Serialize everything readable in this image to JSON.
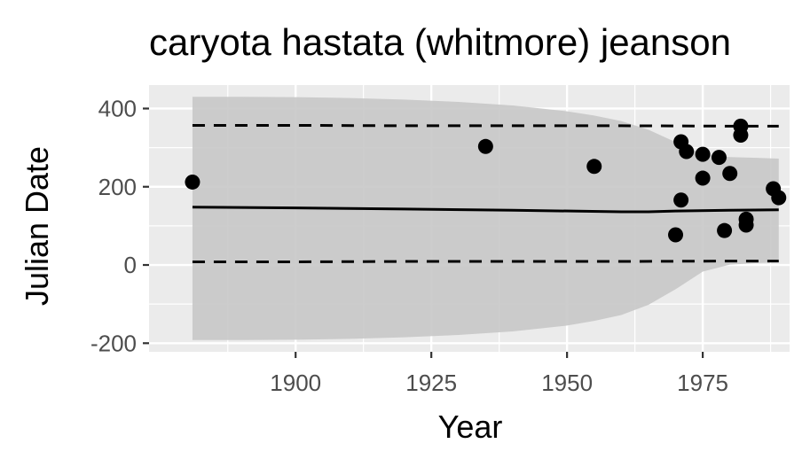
{
  "chart_data": {
    "type": "scatter",
    "title": "caryota hastata (whitmore) jeanson",
    "xlabel": "Year",
    "ylabel": "Julian Date",
    "xlim": [
      1873,
      1991
    ],
    "ylim": [
      -222,
      460
    ],
    "x_ticks": [
      1900,
      1925,
      1950,
      1975
    ],
    "y_ticks": [
      -200,
      0,
      200,
      400
    ],
    "x_tick_labels": [
      "1900",
      "1925",
      "1950",
      "1975"
    ],
    "y_tick_labels": [
      "-200",
      "0",
      "200",
      "400"
    ],
    "grid": true,
    "legend": "none",
    "colors": {
      "panel": "#ebebeb",
      "grid": "#ffffff",
      "ribbon": "#c8c8c8",
      "point": "#000000",
      "line": "#000000",
      "tick_text": "#4d4d4d",
      "tick_mark": "#333333"
    },
    "points": [
      {
        "x": 1881,
        "y": 212
      },
      {
        "x": 1935,
        "y": 303
      },
      {
        "x": 1955,
        "y": 252
      },
      {
        "x": 1970,
        "y": 77
      },
      {
        "x": 1971,
        "y": 315
      },
      {
        "x": 1971,
        "y": 166
      },
      {
        "x": 1972,
        "y": 290
      },
      {
        "x": 1975,
        "y": 283
      },
      {
        "x": 1975,
        "y": 222
      },
      {
        "x": 1978,
        "y": 275
      },
      {
        "x": 1979,
        "y": 88
      },
      {
        "x": 1980,
        "y": 234
      },
      {
        "x": 1982,
        "y": 355
      },
      {
        "x": 1982,
        "y": 332
      },
      {
        "x": 1983,
        "y": 117
      },
      {
        "x": 1983,
        "y": 102
      },
      {
        "x": 1988,
        "y": 195
      },
      {
        "x": 1989,
        "y": 172
      }
    ],
    "fit_line": {
      "x": [
        1881,
        1900,
        1920,
        1940,
        1960,
        1965,
        1970,
        1980,
        1989
      ],
      "y": [
        148,
        146,
        143,
        140,
        136,
        136,
        138,
        140,
        141
      ]
    },
    "upper_dashed": {
      "x": [
        1881,
        1900,
        1920,
        1940,
        1960,
        1980,
        1989
      ],
      "y": [
        357,
        357,
        356,
        356,
        356,
        355,
        355
      ]
    },
    "lower_dashed": {
      "x": [
        1881,
        1900,
        1920,
        1940,
        1960,
        1980,
        1989
      ],
      "y": [
        8,
        8,
        9,
        9,
        9,
        10,
        10
      ]
    },
    "ribbon": {
      "x": [
        1881,
        1890,
        1900,
        1910,
        1920,
        1930,
        1940,
        1950,
        1955,
        1960,
        1965,
        1970,
        1975,
        1980,
        1985,
        1989
      ],
      "upper": [
        430,
        430,
        429,
        427,
        423,
        417,
        408,
        393,
        382,
        368,
        346,
        314,
        282,
        276,
        274,
        272
      ],
      "lower": [
        -192,
        -192,
        -191,
        -189,
        -185,
        -179,
        -170,
        -155,
        -143,
        -128,
        -102,
        -62,
        -17,
        1,
        5,
        7
      ]
    }
  }
}
